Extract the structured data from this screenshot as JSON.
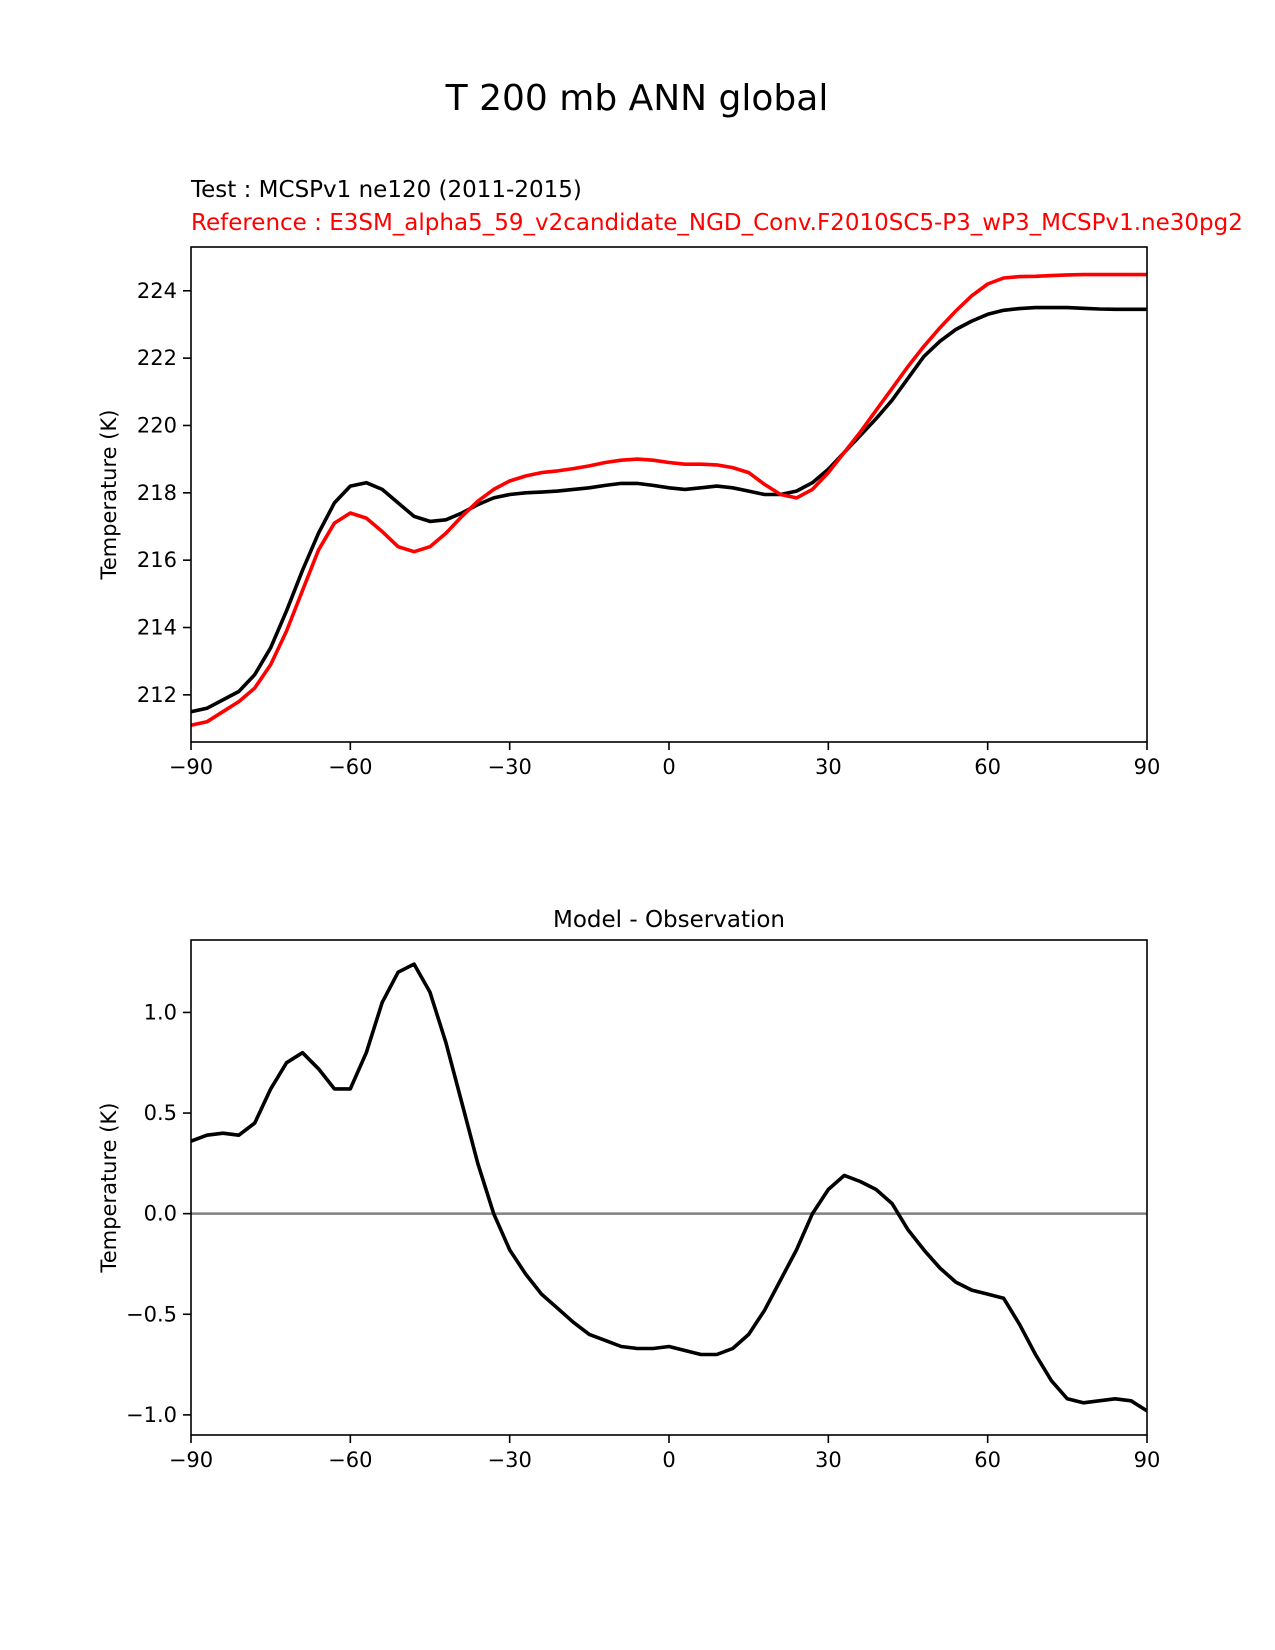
{
  "figure_title": "T 200 mb ANN global",
  "chart_data": [
    {
      "type": "line",
      "title": "",
      "subtitle_test": "Test : MCSPv1 ne120 (2011-2015)",
      "subtitle_reference": "Reference : E3SM_alpha5_59_v2candidate_NGD_Conv.F2010SC5-P3_wP3_MCSPv1.ne30pg2",
      "xlabel": "",
      "ylabel": "Temperature (K)",
      "xlim": [
        -90,
        90
      ],
      "ylim": [
        210.6,
        225.3
      ],
      "xticks": [
        -90,
        -60,
        -30,
        0,
        30,
        60,
        90
      ],
      "xtick_labels": [
        "−90",
        "−60",
        "−30",
        "0",
        "30",
        "60",
        "90"
      ],
      "yticks": [
        212,
        214,
        216,
        218,
        220,
        222,
        224
      ],
      "ytick_labels": [
        "212",
        "214",
        "216",
        "218",
        "220",
        "222",
        "224"
      ],
      "grid": false,
      "series": [
        {
          "name": "Test",
          "color": "#000000",
          "x": [
            -90,
            -87,
            -84,
            -81,
            -78,
            -75,
            -72,
            -69,
            -66,
            -63,
            -60,
            -57,
            -54,
            -51,
            -48,
            -45,
            -42,
            -39,
            -36,
            -33,
            -30,
            -27,
            -24,
            -21,
            -18,
            -15,
            -12,
            -9,
            -6,
            -3,
            0,
            3,
            6,
            9,
            12,
            15,
            18,
            21,
            24,
            27,
            30,
            33,
            36,
            39,
            42,
            45,
            48,
            51,
            54,
            57,
            60,
            63,
            66,
            69,
            72,
            75,
            78,
            81,
            84,
            87,
            90
          ],
          "y": [
            211.5,
            211.6,
            211.85,
            212.1,
            212.6,
            213.4,
            214.5,
            215.7,
            216.8,
            217.7,
            218.2,
            218.3,
            218.1,
            217.7,
            217.3,
            217.15,
            217.2,
            217.4,
            217.65,
            217.85,
            217.95,
            218.0,
            218.02,
            218.05,
            218.1,
            218.15,
            218.22,
            218.28,
            218.28,
            218.22,
            218.15,
            218.1,
            218.15,
            218.2,
            218.15,
            218.05,
            217.95,
            217.95,
            218.05,
            218.3,
            218.7,
            219.2,
            219.7,
            220.2,
            220.75,
            221.4,
            222.05,
            222.5,
            222.85,
            223.1,
            223.3,
            223.42,
            223.47,
            223.5,
            223.5,
            223.5,
            223.48,
            223.46,
            223.45,
            223.45,
            223.45
          ]
        },
        {
          "name": "Reference",
          "color": "#ff0000",
          "x": [
            -90,
            -87,
            -84,
            -81,
            -78,
            -75,
            -72,
            -69,
            -66,
            -63,
            -60,
            -57,
            -54,
            -51,
            -48,
            -45,
            -42,
            -39,
            -36,
            -33,
            -30,
            -27,
            -24,
            -21,
            -18,
            -15,
            -12,
            -9,
            -6,
            -3,
            0,
            3,
            6,
            9,
            12,
            15,
            18,
            21,
            24,
            27,
            30,
            33,
            36,
            39,
            42,
            45,
            48,
            51,
            54,
            57,
            60,
            63,
            66,
            69,
            72,
            75,
            78,
            81,
            84,
            87,
            90
          ],
          "y": [
            211.1,
            211.2,
            211.5,
            211.8,
            212.2,
            212.9,
            213.9,
            215.1,
            216.3,
            217.1,
            217.4,
            217.25,
            216.85,
            216.4,
            216.25,
            216.4,
            216.8,
            217.3,
            217.75,
            218.1,
            218.35,
            218.5,
            218.6,
            218.65,
            218.72,
            218.8,
            218.9,
            218.97,
            219.0,
            218.97,
            218.9,
            218.85,
            218.85,
            218.83,
            218.75,
            218.6,
            218.25,
            217.95,
            217.85,
            218.1,
            218.6,
            219.2,
            219.8,
            220.45,
            221.1,
            221.75,
            222.35,
            222.9,
            223.4,
            223.85,
            224.2,
            224.38,
            224.42,
            224.43,
            224.45,
            224.47,
            224.48,
            224.48,
            224.48,
            224.48,
            224.48
          ]
        }
      ]
    },
    {
      "type": "line",
      "title": "Model - Observation",
      "xlabel": "",
      "ylabel": "Temperature (K)",
      "xlim": [
        -90,
        90
      ],
      "ylim": [
        -1.1,
        1.36
      ],
      "xticks": [
        -90,
        -60,
        -30,
        0,
        30,
        60,
        90
      ],
      "xtick_labels": [
        "−90",
        "−60",
        "−30",
        "0",
        "30",
        "60",
        "90"
      ],
      "yticks": [
        -1.0,
        -0.5,
        0.0,
        0.5,
        1.0
      ],
      "ytick_labels": [
        "−1.0",
        "−0.5",
        "0.0",
        "0.5",
        "1.0"
      ],
      "grid": false,
      "zero_line": {
        "y": 0.0,
        "color": "#808080"
      },
      "series": [
        {
          "name": "Model - Observation",
          "color": "#000000",
          "x": [
            -90,
            -87,
            -84,
            -81,
            -78,
            -75,
            -72,
            -69,
            -66,
            -63,
            -60,
            -57,
            -54,
            -51,
            -48,
            -45,
            -42,
            -39,
            -36,
            -33,
            -30,
            -27,
            -24,
            -21,
            -18,
            -15,
            -12,
            -9,
            -6,
            -3,
            0,
            3,
            6,
            9,
            12,
            15,
            18,
            21,
            24,
            27,
            30,
            33,
            36,
            39,
            42,
            45,
            48,
            51,
            54,
            57,
            60,
            63,
            66,
            69,
            72,
            75,
            78,
            81,
            84,
            87,
            90
          ],
          "y": [
            0.36,
            0.39,
            0.4,
            0.39,
            0.45,
            0.62,
            0.75,
            0.8,
            0.72,
            0.62,
            0.62,
            0.8,
            1.05,
            1.2,
            1.24,
            1.1,
            0.85,
            0.55,
            0.25,
            0.0,
            -0.18,
            -0.3,
            -0.4,
            -0.47,
            -0.54,
            -0.6,
            -0.63,
            -0.66,
            -0.67,
            -0.67,
            -0.66,
            -0.68,
            -0.7,
            -0.7,
            -0.67,
            -0.6,
            -0.48,
            -0.33,
            -0.18,
            0.0,
            0.12,
            0.19,
            0.16,
            0.12,
            0.05,
            -0.08,
            -0.18,
            -0.27,
            -0.34,
            -0.38,
            -0.4,
            -0.42,
            -0.55,
            -0.7,
            -0.83,
            -0.92,
            -0.94,
            -0.93,
            -0.92,
            -0.93,
            -0.98
          ]
        }
      ]
    }
  ]
}
